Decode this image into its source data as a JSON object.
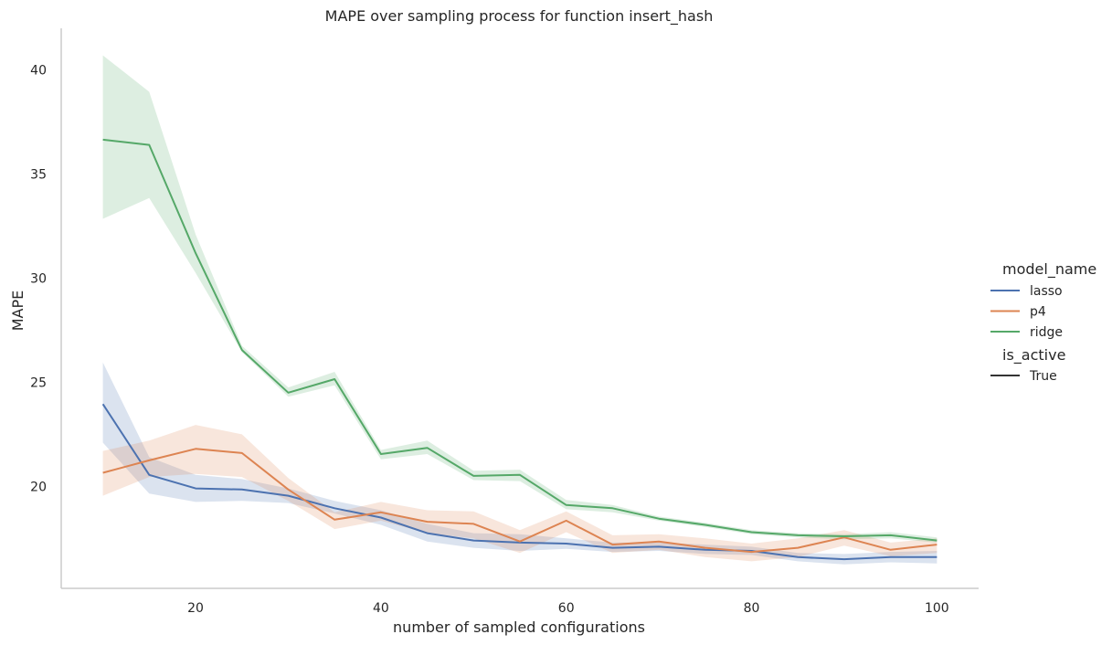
{
  "chart_data": {
    "type": "line",
    "title": "MAPE over sampling process for function insert_hash",
    "xlabel": "number of sampled configurations",
    "ylabel": "MAPE",
    "xlim": [
      5.5,
      104.5
    ],
    "ylim": [
      15.1,
      42.0
    ],
    "xticks": [
      20,
      40,
      60,
      80,
      100
    ],
    "yticks": [
      20,
      25,
      30,
      35,
      40
    ],
    "grid": false,
    "legend_placement": "right",
    "x": [
      10,
      15,
      20,
      25,
      30,
      35,
      40,
      45,
      50,
      55,
      60,
      65,
      70,
      75,
      80,
      85,
      90,
      95,
      100
    ],
    "legend": {
      "hue_title": "model_name",
      "style_title": "is_active",
      "style_entries": [
        {
          "label": "True",
          "color": "#333333"
        }
      ]
    },
    "series": [
      {
        "name": "lasso",
        "color": "#4c72b0",
        "values": [
          23.95,
          20.55,
          19.9,
          19.85,
          19.55,
          18.95,
          18.5,
          17.75,
          17.4,
          17.3,
          17.25,
          17.05,
          17.1,
          16.95,
          16.9,
          16.6,
          16.5,
          16.6,
          16.6
        ],
        "ci_lower": [
          22.1,
          19.65,
          19.25,
          19.3,
          19.2,
          18.7,
          18.15,
          17.35,
          17.05,
          16.9,
          17.0,
          16.85,
          16.9,
          16.75,
          16.7,
          16.4,
          16.25,
          16.35,
          16.3
        ],
        "ci_upper": [
          25.95,
          21.4,
          20.55,
          20.35,
          19.9,
          19.3,
          18.85,
          18.2,
          17.75,
          17.7,
          17.5,
          17.3,
          17.3,
          17.2,
          17.1,
          16.8,
          16.75,
          16.85,
          16.9
        ]
      },
      {
        "name": "p4",
        "color": "#dd8452",
        "values": [
          20.65,
          21.25,
          21.8,
          21.6,
          19.85,
          18.4,
          18.75,
          18.3,
          18.2,
          17.35,
          18.35,
          17.2,
          17.35,
          17.05,
          16.85,
          17.05,
          17.55,
          16.95,
          17.2
        ],
        "ci_lower": [
          19.55,
          20.45,
          20.6,
          20.45,
          19.3,
          17.95,
          18.35,
          17.75,
          17.5,
          16.8,
          17.8,
          16.8,
          16.95,
          16.6,
          16.4,
          16.6,
          17.15,
          16.65,
          16.8
        ],
        "ci_upper": [
          21.7,
          22.2,
          22.95,
          22.5,
          20.4,
          18.75,
          19.25,
          18.85,
          18.8,
          17.9,
          18.8,
          17.65,
          17.7,
          17.5,
          17.25,
          17.5,
          17.9,
          17.3,
          17.5
        ]
      },
      {
        "name": "ridge",
        "color": "#55a868",
        "values": [
          36.65,
          36.4,
          31.2,
          26.55,
          24.5,
          25.15,
          21.55,
          21.85,
          20.5,
          20.55,
          19.1,
          18.95,
          18.45,
          18.15,
          17.8,
          17.65,
          17.6,
          17.65,
          17.4
        ],
        "ci_lower": [
          32.85,
          33.85,
          30.25,
          26.45,
          24.3,
          24.85,
          21.3,
          21.55,
          20.3,
          20.25,
          18.9,
          18.75,
          18.35,
          18.05,
          17.7,
          17.55,
          17.45,
          17.5,
          17.3
        ],
        "ci_upper": [
          40.7,
          38.95,
          32.1,
          26.75,
          24.75,
          25.5,
          21.75,
          22.2,
          20.75,
          20.8,
          19.35,
          19.1,
          18.55,
          18.25,
          17.9,
          17.75,
          17.7,
          17.8,
          17.55
        ]
      }
    ]
  }
}
